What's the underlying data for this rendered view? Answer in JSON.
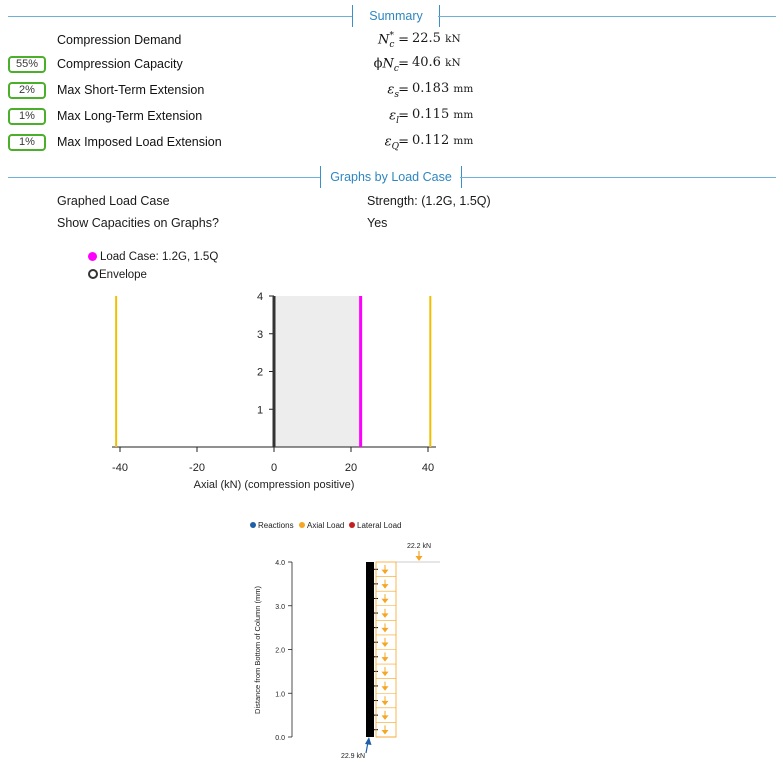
{
  "summary": {
    "header": "Summary",
    "rows": [
      {
        "badge": "",
        "label": "Compression Demand",
        "sym": "N",
        "sub": "c",
        "sup": "*",
        "prefix": "",
        "value": "22.5",
        "unit": "kN"
      },
      {
        "badge": "55%",
        "label": "Compression Capacity",
        "sym": "N",
        "sub": "c",
        "sup": "",
        "prefix": "ϕ",
        "value": "40.6",
        "unit": "kN"
      },
      {
        "badge": "2%",
        "label": "Max Short-Term Extension",
        "sym": "ε",
        "sub": "s",
        "sup": "",
        "prefix": "",
        "value": "0.183",
        "unit": "mm"
      },
      {
        "badge": "1%",
        "label": "Max Long-Term Extension",
        "sym": "ε",
        "sub": "l",
        "sup": "",
        "prefix": "",
        "value": "0.115",
        "unit": "mm"
      },
      {
        "badge": "1%",
        "label": "Max Imposed Load Extension",
        "sym": "ε",
        "sub": "Q",
        "sup": "",
        "prefix": "",
        "value": "0.112",
        "unit": "mm"
      }
    ]
  },
  "graphs": {
    "header": "Graphs by Load Case",
    "load_case_label": "Graphed Load Case",
    "load_case_value": "Strength: (1.2G, 1.5Q)",
    "show_caps_label": "Show Capacities on Graphs?",
    "show_caps_value": "Yes"
  },
  "chart_data": [
    {
      "type": "line",
      "legend": [
        {
          "name": "Load Case: 1.2G, 1.5Q",
          "color": "#ff00ff",
          "marker": "filled"
        },
        {
          "name": "Envelope",
          "color": "#333333",
          "marker": "ring"
        }
      ],
      "xlabel": "Axial (kN) (compression positive)",
      "xlim": [
        -43,
        43
      ],
      "ylim": [
        0,
        4
      ],
      "xticks": [
        "-40",
        "-20",
        "0",
        "20",
        "40"
      ],
      "yticks": [
        "1",
        "2",
        "3",
        "4"
      ],
      "capacity_lines_x": [
        -41,
        40.6
      ],
      "capacity_color": "#f0c000",
      "envelope_range_x": [
        0,
        22.5
      ],
      "series": [
        {
          "name": "Load Case: 1.2G, 1.5Q",
          "x": [
            22.5,
            22.5
          ],
          "y": [
            0,
            4
          ],
          "color": "#ff00ff"
        }
      ]
    },
    {
      "type": "diagram",
      "legend": [
        {
          "name": "Reactions",
          "color": "#1f5fa8"
        },
        {
          "name": "Axial Load",
          "color": "#f5a623"
        },
        {
          "name": "Lateral Load",
          "color": "#c41f1f"
        }
      ],
      "ylabel": "Distance from Bottom of Column (mm)",
      "ylim": [
        0,
        4
      ],
      "yticks": [
        "0.0",
        "1.0",
        "2.0",
        "3.0",
        "4.0"
      ],
      "top_load_label": "22.2 kN",
      "reaction_label": "22.9 kN",
      "axial_color": "#f5a623",
      "reaction_color": "#1f5fa8"
    }
  ]
}
